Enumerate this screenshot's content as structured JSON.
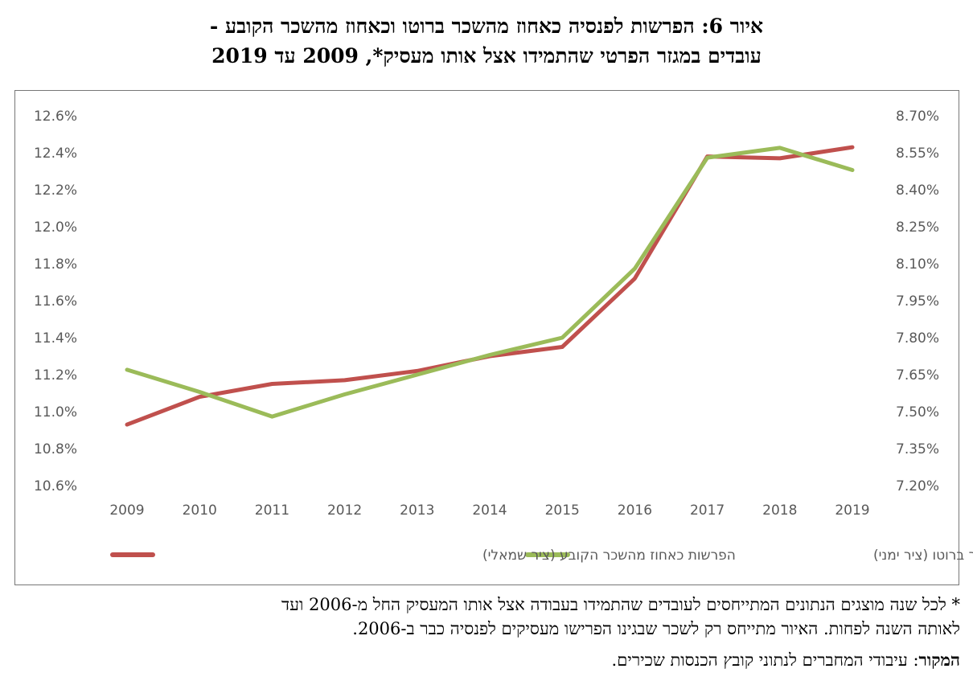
{
  "title_line1": "איור 6: הפרשות לפנסיה כאחוז מהשכר ברוטו וכאחוז מהשכר הקובע -",
  "title_line2": "עובדים במגזר הפרטי שהתמידו אצל אותו מעסיק*, 2009 עד 2019",
  "footnote_line1": "* לכל שנה מוצגים הנתונים המתייחסים לעובדים שהתמידו בעבודה אצל אותו המעסיק החל מ-2006 ועד",
  "footnote_line2": "לאותה השנה לפחות. האיור מתייחס רק לשכר שבגינו הפרישו מעסיקים לפנסיה כבר ב-2006.",
  "source_label": "המקור",
  "source_text": ": עיבודי המחברים לנתוני קובץ הכנסות שכירים.",
  "chart_data": {
    "type": "line",
    "categories": [
      "2009",
      "2010",
      "2011",
      "2012",
      "2013",
      "2014",
      "2015",
      "2016",
      "2017",
      "2018",
      "2019"
    ],
    "left_axis": {
      "ylim": [
        10.6,
        12.6
      ],
      "ticks": [
        "12.6%",
        "12.4%",
        "12.2%",
        "12.0%",
        "11.8%",
        "11.6%",
        "11.4%",
        "11.2%",
        "11.0%",
        "10.8%",
        "10.6%"
      ]
    },
    "right_axis": {
      "ylim": [
        7.2,
        8.7
      ],
      "ticks": [
        "8.70%",
        "8.55%",
        "8.40%",
        "8.25%",
        "8.10%",
        "7.95%",
        "7.80%",
        "7.65%",
        "7.50%",
        "7.35%",
        "7.20%"
      ]
    },
    "series": [
      {
        "name": "הפרשות כאחוז מהשכר הקובע (ציר שמאלי)",
        "axis": "left",
        "color": "#c0504d",
        "values": [
          10.93,
          11.08,
          11.15,
          11.17,
          11.22,
          11.3,
          11.35,
          11.72,
          12.38,
          12.37,
          12.43
        ]
      },
      {
        "name": "הפרשות כאחוז מהשכר ברוטו (ציר ימני)",
        "axis": "right",
        "color": "#9bbb59",
        "values": [
          7.67,
          7.58,
          7.48,
          7.57,
          7.65,
          7.73,
          7.8,
          8.08,
          8.53,
          8.57,
          8.48
        ]
      }
    ],
    "grid": false,
    "legend_position": "bottom"
  }
}
